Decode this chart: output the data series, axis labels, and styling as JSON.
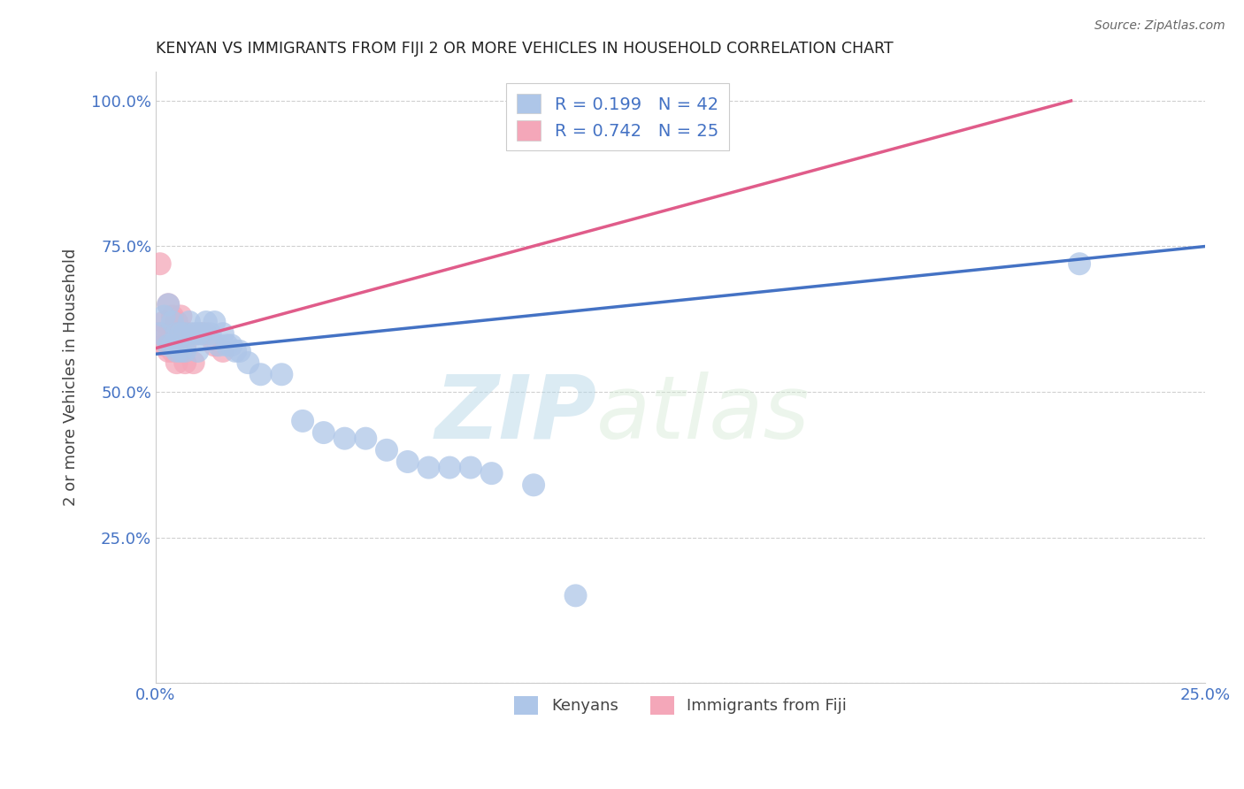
{
  "title": "KENYAN VS IMMIGRANTS FROM FIJI 2 OR MORE VEHICLES IN HOUSEHOLD CORRELATION CHART",
  "source": "Source: ZipAtlas.com",
  "ylabel_label": "2 or more Vehicles in Household",
  "x_label_bottom": "Kenyans",
  "x_label_bottom2": "Immigrants from Fiji",
  "xlim": [
    0.0,
    0.25
  ],
  "ylim": [
    0.0,
    1.05
  ],
  "x_ticks": [
    0.0,
    0.05,
    0.1,
    0.15,
    0.2,
    0.25
  ],
  "x_tick_labels": [
    "0.0%",
    "",
    "",
    "",
    "",
    "25.0%"
  ],
  "y_ticks": [
    0.0,
    0.25,
    0.5,
    0.75,
    1.0
  ],
  "y_tick_labels": [
    "",
    "25.0%",
    "50.0%",
    "75.0%",
    "100.0%"
  ],
  "kenyan_color": "#aec6e8",
  "fiji_color": "#f4a7b9",
  "kenyan_line_color": "#4472c4",
  "fiji_line_color": "#e05c8a",
  "kenyan_R": 0.199,
  "kenyan_N": 42,
  "fiji_R": 0.742,
  "fiji_N": 25,
  "kenyan_x": [
    0.001,
    0.002,
    0.003,
    0.003,
    0.004,
    0.004,
    0.005,
    0.005,
    0.006,
    0.006,
    0.007,
    0.007,
    0.008,
    0.009,
    0.01,
    0.01,
    0.011,
    0.012,
    0.013,
    0.014,
    0.015,
    0.016,
    0.017,
    0.018,
    0.019,
    0.02,
    0.022,
    0.025,
    0.03,
    0.035,
    0.04,
    0.045,
    0.05,
    0.055,
    0.06,
    0.065,
    0.07,
    0.075,
    0.08,
    0.09,
    0.1,
    0.22
  ],
  "kenyan_y": [
    0.6,
    0.63,
    0.58,
    0.65,
    0.58,
    0.62,
    0.57,
    0.6,
    0.57,
    0.6,
    0.57,
    0.6,
    0.62,
    0.6,
    0.57,
    0.6,
    0.6,
    0.62,
    0.6,
    0.62,
    0.58,
    0.6,
    0.58,
    0.58,
    0.57,
    0.57,
    0.55,
    0.53,
    0.53,
    0.45,
    0.43,
    0.42,
    0.42,
    0.4,
    0.38,
    0.37,
    0.37,
    0.37,
    0.36,
    0.34,
    0.15,
    0.72
  ],
  "fiji_x": [
    0.001,
    0.001,
    0.002,
    0.002,
    0.003,
    0.003,
    0.003,
    0.004,
    0.004,
    0.004,
    0.005,
    0.005,
    0.005,
    0.006,
    0.006,
    0.006,
    0.007,
    0.007,
    0.008,
    0.009,
    0.01,
    0.011,
    0.012,
    0.014,
    0.016
  ],
  "fiji_y": [
    0.6,
    0.72,
    0.58,
    0.62,
    0.57,
    0.6,
    0.65,
    0.57,
    0.6,
    0.63,
    0.55,
    0.58,
    0.62,
    0.57,
    0.6,
    0.63,
    0.55,
    0.58,
    0.6,
    0.55,
    0.6,
    0.6,
    0.6,
    0.58,
    0.57
  ],
  "kenyan_line_x0": 0.0,
  "kenyan_line_y0": 0.565,
  "kenyan_line_x1": 0.25,
  "kenyan_line_y1": 0.75,
  "fiji_line_x0": 0.0,
  "fiji_line_y0": 0.575,
  "fiji_line_x1": 0.218,
  "fiji_line_y1": 1.0,
  "watermark_zip": "ZIP",
  "watermark_atlas": "atlas",
  "background_color": "#ffffff",
  "grid_color": "#d0d0d0"
}
